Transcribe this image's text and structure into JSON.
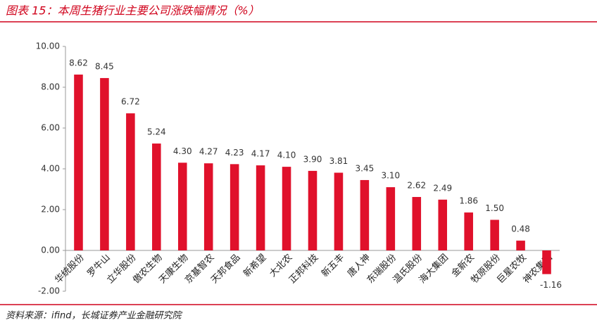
{
  "chart_data": {
    "type": "bar",
    "title": "图表 15：本周生猪行业主要公司涨跌幅情况（%）",
    "source": "资料来源：ifind，长城证券产业金融研究院",
    "categories": [
      "华统股份",
      "罗牛山",
      "立华股份",
      "傲农生物",
      "天康生物",
      "京基智农",
      "天邦食品",
      "新希望",
      "大北农",
      "正邦科技",
      "新五丰",
      "唐人神",
      "东瑞股份",
      "温氏股份",
      "海大集团",
      "金新农",
      "牧原股份",
      "巨星农牧",
      "神农集团"
    ],
    "values": [
      8.62,
      8.45,
      6.72,
      5.24,
      4.3,
      4.27,
      4.23,
      4.17,
      4.1,
      3.9,
      3.81,
      3.45,
      3.1,
      2.62,
      2.49,
      1.86,
      1.5,
      0.48,
      -1.16
    ],
    "value_labels": [
      "8.62",
      "8.45",
      "6.72",
      "5.24",
      "4.30",
      "4.27",
      "4.23",
      "4.17",
      "4.10",
      "3.90",
      "3.81",
      "3.45",
      "3.10",
      "2.62",
      "2.49",
      "1.86",
      "1.50",
      "0.48",
      "-1.16"
    ],
    "color": "#e0112b",
    "ylim": [
      -2,
      10
    ],
    "yticks": [
      {
        "value": -2,
        "label": "-2.00"
      },
      {
        "value": 0,
        "label": "0.00"
      },
      {
        "value": 2,
        "label": "2.00"
      },
      {
        "value": 4,
        "label": "4.00"
      },
      {
        "value": 6,
        "label": "6.00"
      },
      {
        "value": 8,
        "label": "8.00"
      },
      {
        "value": 10,
        "label": "10.00"
      }
    ],
    "grid": false
  }
}
